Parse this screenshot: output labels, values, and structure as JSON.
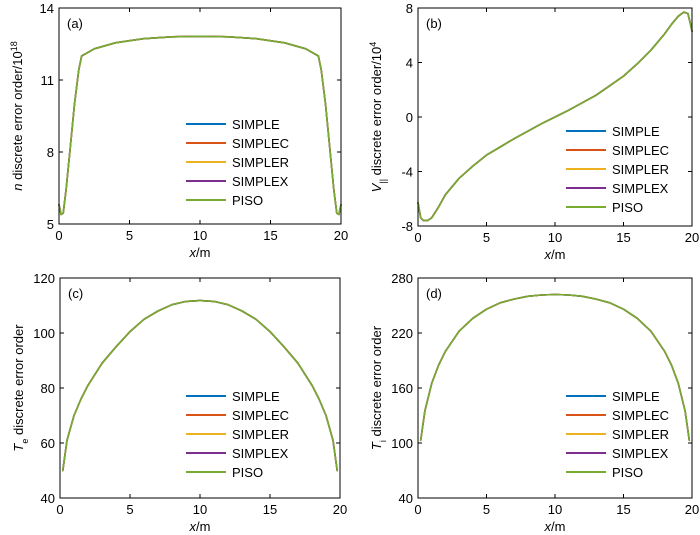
{
  "chart_data": [
    {
      "type": "line",
      "panel": "(a)",
      "xlabel_var": "x",
      "xlabel_unit": "/m",
      "ylabel_var": "n",
      "ylabel_text": " discrete error order/10",
      "ylabel_sup": "18",
      "xlim": [
        0,
        20
      ],
      "ylim": [
        5,
        14
      ],
      "xticks": [
        0,
        5,
        10,
        15,
        20
      ],
      "yticks": [
        5,
        8,
        11,
        14
      ],
      "legend_position": "center-right",
      "series": [
        {
          "name": "SIMPLE",
          "color": "#0072BD"
        },
        {
          "name": "SIMPLEC",
          "color": "#D95319"
        },
        {
          "name": "SIMPLER",
          "color": "#EDB120"
        },
        {
          "name": "SIMPLEX",
          "color": "#7E2F8E"
        },
        {
          "name": "PISO",
          "color": "#77AC30"
        }
      ],
      "x": [
        0,
        0.15,
        0.3,
        0.5,
        0.8,
        1.1,
        1.4,
        1.6,
        2.5,
        4,
        6,
        8,
        10,
        12,
        14,
        16,
        17.5,
        18.4,
        18.6,
        18.9,
        19.2,
        19.5,
        19.7,
        19.85,
        20
      ],
      "y": [
        5.8,
        5.4,
        5.45,
        6.4,
        8.2,
        10.0,
        11.4,
        12.0,
        12.3,
        12.55,
        12.72,
        12.8,
        12.82,
        12.8,
        12.72,
        12.55,
        12.3,
        12.0,
        11.4,
        10.0,
        8.2,
        6.4,
        5.45,
        5.4,
        5.8
      ]
    },
    {
      "type": "line",
      "panel": "(b)",
      "xlabel_var": "x",
      "xlabel_unit": "/m",
      "ylabel_var": "V",
      "ylabel_sub": "||",
      "ylabel_text": " discrete error order/10",
      "ylabel_sup": "4",
      "xlim": [
        0,
        20
      ],
      "ylim": [
        -8,
        8
      ],
      "xticks": [
        0,
        5,
        10,
        15,
        20
      ],
      "yticks": [
        -8,
        -4,
        0,
        4,
        8
      ],
      "legend_position": "center-right",
      "series": [
        {
          "name": "SIMPLE",
          "color": "#0072BD"
        },
        {
          "name": "SIMPLEC",
          "color": "#D95319"
        },
        {
          "name": "SIMPLER",
          "color": "#EDB120"
        },
        {
          "name": "SIMPLEX",
          "color": "#7E2F8E"
        },
        {
          "name": "PISO",
          "color": "#77AC30"
        }
      ],
      "x": [
        0,
        0.2,
        0.4,
        0.7,
        1.0,
        1.5,
        2,
        3,
        4,
        5,
        6,
        7,
        8,
        9,
        10,
        11,
        12,
        13,
        14,
        15,
        16,
        17,
        18,
        18.5,
        19,
        19.4,
        19.7,
        19.85,
        20
      ],
      "y": [
        -6.3,
        -7.4,
        -7.6,
        -7.6,
        -7.4,
        -6.6,
        -5.7,
        -4.5,
        -3.6,
        -2.8,
        -2.2,
        -1.6,
        -1.05,
        -0.5,
        0.0,
        0.5,
        1.05,
        1.6,
        2.3,
        3.0,
        3.9,
        4.9,
        6.1,
        6.8,
        7.4,
        7.7,
        7.6,
        7.0,
        6.3
      ]
    },
    {
      "type": "line",
      "panel": "(c)",
      "xlabel_var": "x",
      "xlabel_unit": "/m",
      "ylabel_var": "T",
      "ylabel_sub": "e",
      "ylabel_text": " discrete error order",
      "xlim": [
        0,
        20
      ],
      "ylim": [
        40,
        120
      ],
      "xticks": [
        0,
        5,
        10,
        15,
        20
      ],
      "yticks": [
        40,
        60,
        80,
        100,
        120
      ],
      "legend_position": "bottom-right",
      "series": [
        {
          "name": "SIMPLE",
          "color": "#0072BD"
        },
        {
          "name": "SIMPLEC",
          "color": "#D95319"
        },
        {
          "name": "SIMPLER",
          "color": "#EDB120"
        },
        {
          "name": "SIMPLEX",
          "color": "#7E2F8E"
        },
        {
          "name": "PISO",
          "color": "#77AC30"
        }
      ],
      "x": [
        0.2,
        0.5,
        1,
        1.5,
        2,
        3,
        4,
        5,
        6,
        7,
        8,
        9,
        10,
        11,
        12,
        13,
        14,
        15,
        16,
        17,
        18,
        18.5,
        19,
        19.5,
        19.8
      ],
      "y": [
        50,
        61,
        70,
        76,
        81,
        89,
        95,
        100.5,
        105,
        108,
        110.3,
        111.5,
        111.8,
        111.5,
        110.3,
        108,
        105,
        100.5,
        95,
        89,
        81,
        76,
        70,
        61,
        50
      ]
    },
    {
      "type": "line",
      "panel": "(d)",
      "xlabel_var": "x",
      "xlabel_unit": "/m",
      "ylabel_var": "T",
      "ylabel_sub": "i",
      "ylabel_text": " discrete error order",
      "xlim": [
        0,
        20
      ],
      "ylim": [
        40,
        280
      ],
      "xticks": [
        0,
        5,
        10,
        15,
        20
      ],
      "yticks": [
        40,
        100,
        160,
        220,
        280
      ],
      "legend_position": "bottom-right",
      "series": [
        {
          "name": "SIMPLE",
          "color": "#0072BD"
        },
        {
          "name": "SIMPLEC",
          "color": "#D95319"
        },
        {
          "name": "SIMPLER",
          "color": "#EDB120"
        },
        {
          "name": "SIMPLEX",
          "color": "#7E2F8E"
        },
        {
          "name": "PISO",
          "color": "#77AC30"
        }
      ],
      "x": [
        0.2,
        0.5,
        1,
        1.5,
        2,
        3,
        4,
        5,
        6,
        7,
        8,
        9,
        10,
        11,
        12,
        13,
        14,
        15,
        16,
        17,
        18,
        18.5,
        19,
        19.5,
        19.8
      ],
      "y": [
        103,
        135,
        165,
        185,
        200,
        222,
        236,
        246,
        253,
        257,
        260,
        261.5,
        262,
        261.5,
        260,
        257,
        253,
        246,
        236,
        222,
        200,
        185,
        165,
        135,
        103
      ]
    }
  ]
}
